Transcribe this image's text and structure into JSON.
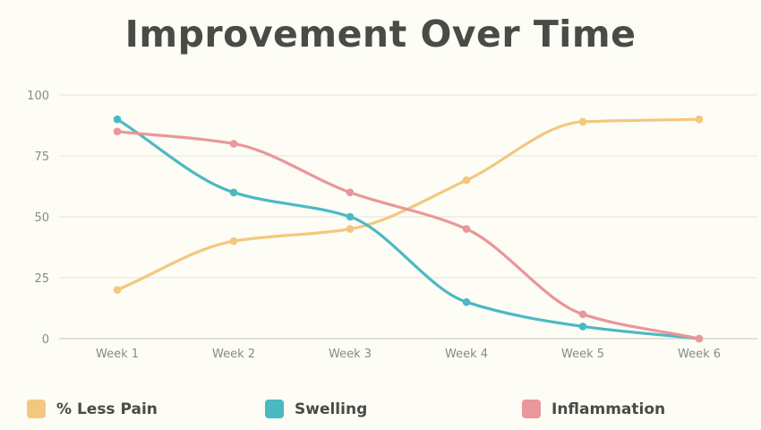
{
  "chart_data": {
    "type": "line",
    "title": "Improvement Over Time",
    "categories": [
      "Week 1",
      "Week 2",
      "Week 3",
      "Week 4",
      "Week 5",
      "Week 6"
    ],
    "ylim": [
      0,
      100
    ],
    "yticks": [
      0,
      25,
      50,
      75,
      100
    ],
    "grid": true,
    "legend_position": "bottom",
    "series": [
      {
        "name": "% Less Pain",
        "color": "#f4c77f",
        "values": [
          20,
          40,
          45,
          65,
          89,
          90
        ]
      },
      {
        "name": "Swelling",
        "color": "#4bb9c3",
        "values": [
          90,
          60,
          50,
          15,
          5,
          0
        ]
      },
      {
        "name": "Inflammation",
        "color": "#e9979a",
        "values": [
          85,
          80,
          60,
          45,
          10,
          0
        ]
      }
    ]
  }
}
